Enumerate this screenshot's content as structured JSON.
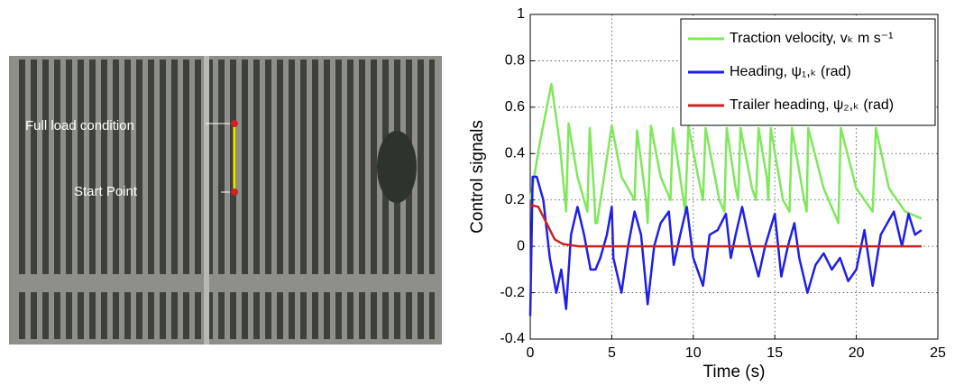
{
  "aerial_image": {
    "annotations": [
      "Full load condition",
      "Start Point"
    ]
  },
  "chart_data": {
    "type": "line",
    "xlabel": "Time (s)",
    "ylabel": "Control signals",
    "xlim": [
      0,
      25
    ],
    "ylim": [
      -0.4,
      1
    ],
    "xticks": [
      0,
      5,
      10,
      15,
      20,
      25
    ],
    "yticks": [
      -0.4,
      -0.2,
      0,
      0.2,
      0.4,
      0.6,
      0.8,
      1
    ],
    "grid": true,
    "legend": "upper right",
    "series": [
      {
        "name": "Traction velocity, vₖ m s⁻¹",
        "color": "#7ee85a",
        "x": [
          0,
          0.6,
          1.3,
          1.8,
          2.2,
          2.35,
          2.9,
          3.5,
          3.65,
          3.9,
          4.0,
          4.1,
          5.0,
          5.6,
          6.4,
          6.55,
          7.1,
          7.2,
          7.4,
          8.0,
          8.6,
          8.75,
          9.5,
          9.7,
          10.3,
          10.6,
          10.75,
          11.6,
          11.9,
          12.05,
          12.6,
          12.75,
          12.9,
          13.6,
          13.85,
          14.0,
          14.5,
          14.6,
          14.75,
          15.5,
          15.9,
          16.05,
          16.8,
          16.95,
          17.05,
          18.0,
          18.9,
          19.05,
          20.0,
          21.0,
          21.2,
          22.0,
          23.0,
          24.0
        ],
        "values": [
          0.2,
          0.45,
          0.7,
          0.45,
          0.15,
          0.53,
          0.3,
          0.15,
          0.51,
          0.25,
          0.1,
          0.1,
          0.52,
          0.3,
          0.2,
          0.5,
          0.2,
          0.1,
          0.52,
          0.3,
          0.2,
          0.51,
          0.15,
          0.52,
          0.3,
          0.2,
          0.51,
          0.2,
          0.15,
          0.51,
          0.25,
          0.2,
          0.51,
          0.25,
          0.2,
          0.51,
          0.3,
          0.2,
          0.51,
          0.2,
          0.15,
          0.51,
          0.2,
          0.15,
          0.51,
          0.25,
          0.1,
          0.51,
          0.25,
          0.15,
          0.51,
          0.25,
          0.15,
          0.12
        ]
      },
      {
        "name": "Heading, ψ₁,ₖ (rad)",
        "color": "#1f1fe6",
        "x": [
          0,
          0.15,
          0.4,
          0.8,
          1.2,
          1.6,
          1.9,
          2.2,
          2.5,
          2.9,
          3.3,
          3.7,
          4.0,
          4.3,
          4.7,
          5.0,
          5.1,
          5.6,
          6.0,
          6.4,
          6.8,
          7.2,
          7.6,
          8.0,
          8.5,
          8.8,
          9.2,
          9.6,
          10.0,
          10.6,
          11.0,
          11.5,
          12.0,
          12.3,
          12.6,
          13.0,
          13.5,
          14.0,
          14.4,
          15.0,
          15.4,
          15.8,
          16.2,
          16.5,
          17.0,
          17.5,
          18.0,
          18.5,
          19.0,
          19.5,
          20.0,
          20.5,
          21.0,
          21.5,
          22.3,
          22.8,
          23.2,
          23.6,
          24.0
        ],
        "values": [
          -0.3,
          0.3,
          0.3,
          0.2,
          -0.05,
          -0.2,
          -0.1,
          -0.27,
          0.05,
          0.17,
          0.05,
          -0.1,
          -0.1,
          -0.05,
          0.05,
          0.17,
          -0.05,
          -0.2,
          0,
          0.15,
          0.05,
          -0.25,
          0,
          0.1,
          0.15,
          -0.08,
          0.05,
          0.17,
          -0.05,
          -0.17,
          0.05,
          0.07,
          0.14,
          -0.05,
          0.05,
          0.17,
          0,
          -0.13,
          0,
          0.14,
          -0.13,
          0,
          0.1,
          -0.05,
          -0.2,
          -0.08,
          -0.03,
          -0.1,
          -0.05,
          -0.15,
          -0.1,
          0.07,
          -0.17,
          0.05,
          0.15,
          0,
          0.14,
          0.05,
          0.07
        ]
      },
      {
        "name": "Trailer heading, ψ₂,ₖ (rad)",
        "color": "#cc2222",
        "x": [
          0,
          0.5,
          1.0,
          1.5,
          2.0,
          3.0,
          24.0
        ],
        "values": [
          0.18,
          0.17,
          0.1,
          0.03,
          0.01,
          0,
          0
        ]
      }
    ]
  }
}
